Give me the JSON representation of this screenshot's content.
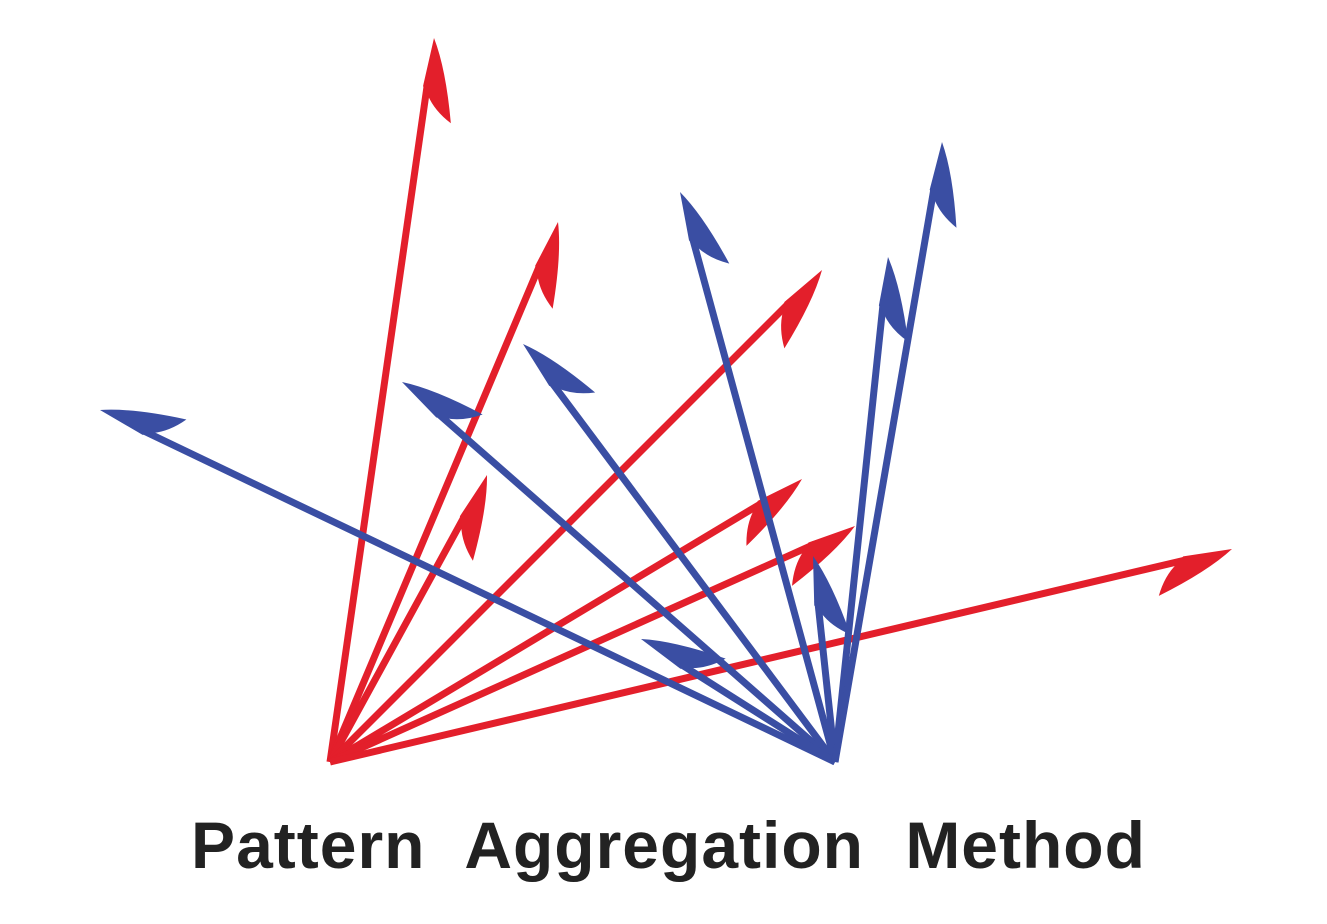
{
  "caption": "Pattern Aggregation Method",
  "colors": {
    "red": "#e31f2b",
    "blue": "#3a4ea3",
    "text": "#222222",
    "background": "#ffffff"
  }
}
